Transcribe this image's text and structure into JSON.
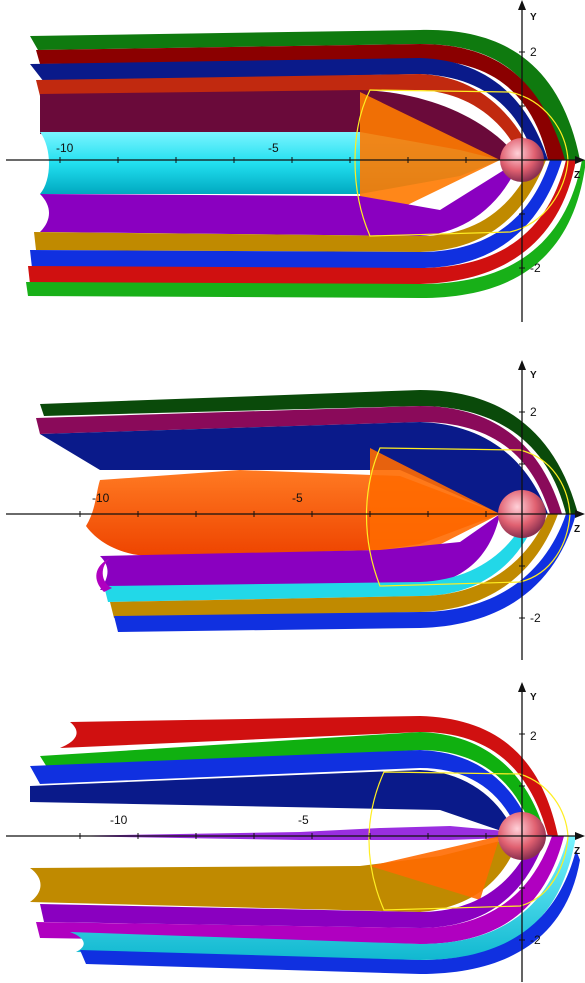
{
  "panels": [
    {
      "axes": {
        "z_label": "Z",
        "y_label": "Y",
        "z_ticks": [
          "-10",
          "-5"
        ],
        "y_ticks": [
          "2",
          "-2"
        ]
      },
      "sheet_colors_top": [
        "#0f7a0f",
        "#8b0000",
        "#0a1a8a",
        "#c1290f",
        "#6a0a3a"
      ],
      "sheet_colors_bottom": [
        "#8a00c0",
        "#c08a00",
        "#1030e0",
        "#d01010",
        "#18b018"
      ],
      "center_color": "#22e0f0",
      "cone_color": "#ff7a00"
    },
    {
      "axes": {
        "z_label": "Z",
        "y_label": "Y",
        "z_ticks": [
          "-10",
          "-5"
        ],
        "y_ticks": [
          "2",
          "-2"
        ]
      },
      "sheet_colors_top": [
        "#0a4a0a",
        "#8a0a5a",
        "#0a1a8a",
        "#1a2aa0",
        "#3a2080"
      ],
      "sheet_colors_bottom": [
        "#8a00c0",
        "#22d8e8",
        "#c08a00",
        "#1030e0",
        "#b000c0"
      ],
      "center_color": "#ff5a00",
      "cone_color": "#ff6a00"
    },
    {
      "axes": {
        "z_label": "Z",
        "y_label": "Y",
        "z_ticks": [
          "-10",
          "-5"
        ],
        "y_ticks": [
          "2",
          "-2"
        ]
      },
      "sheet_colors_top": [
        "#d01010",
        "#10b010",
        "#1030e0",
        "#0a1a8a",
        "#c08a00"
      ],
      "sheet_colors_bottom": [
        "#c08a00",
        "#8a00c0",
        "#b000c0",
        "#22d8e8",
        "#1030e0"
      ],
      "center_color": "#9a2ee0",
      "cone_color": "#ff6a00"
    }
  ]
}
